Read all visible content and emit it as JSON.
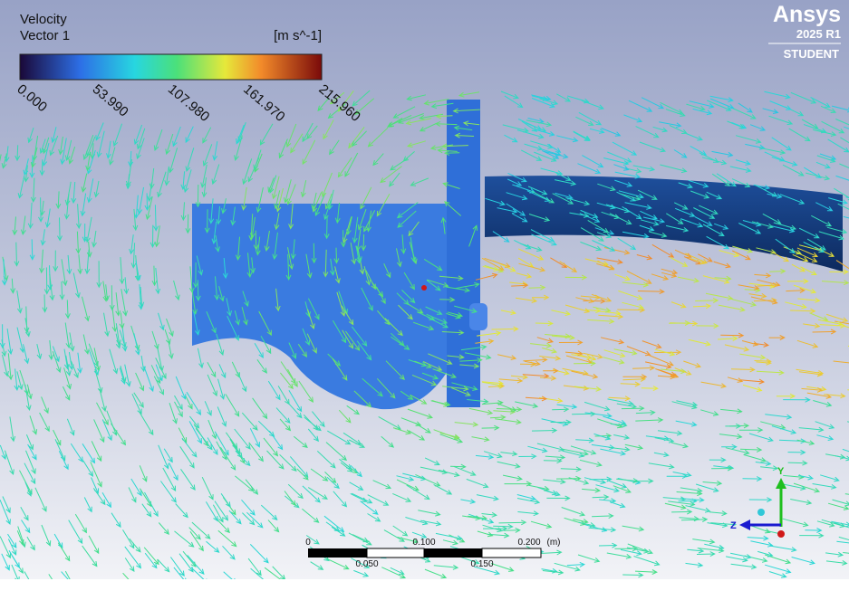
{
  "legend": {
    "title": "Velocity",
    "subtitle": "Vector 1",
    "unit": "[m s^-1]",
    "ticks": [
      "0.000",
      "53.990",
      "107.980",
      "161.970",
      "215.960"
    ]
  },
  "logo": {
    "brand": "Ansys",
    "version": "2025 R1",
    "edition": "STUDENT"
  },
  "scale_bar": {
    "top_labels": [
      "0",
      "0.100",
      "0.200",
      "(m)"
    ],
    "bottom_labels": [
      "0.050",
      "0.150"
    ]
  },
  "axes_triad": {
    "y": "Y",
    "z": "Z"
  }
}
